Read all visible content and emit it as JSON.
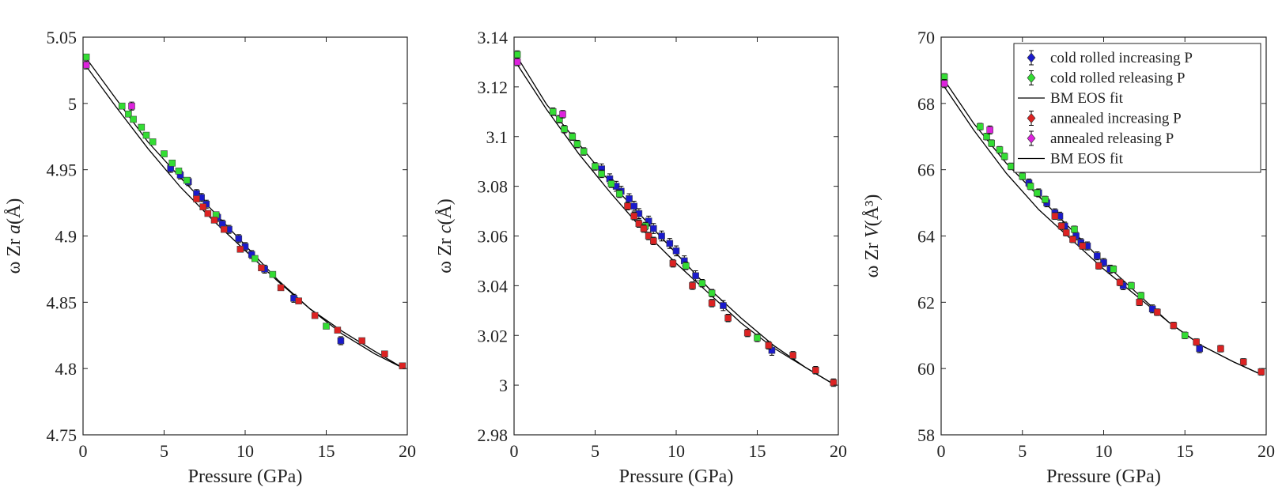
{
  "figure": {
    "legend": {
      "placement": "top-right of third panel",
      "entries": [
        {
          "label": "cold rolled increasing P",
          "color": "#1a1acc",
          "kind": "marker"
        },
        {
          "label": "cold rolled releasing P",
          "color": "#33dd33",
          "kind": "marker"
        },
        {
          "label": "BM EOS fit",
          "color": "#000000",
          "kind": "line"
        },
        {
          "label": "annealed increasing P",
          "color": "#dd2222",
          "kind": "marker"
        },
        {
          "label": "annealed releasing P",
          "color": "#dd22dd",
          "kind": "marker"
        },
        {
          "label": "BM EOS fit",
          "color": "#000000",
          "kind": "line"
        }
      ]
    }
  },
  "chart_data": [
    {
      "type": "scatter",
      "id": "a",
      "title": "",
      "xlabel": "Pressure (GPa)",
      "ylabel_prefix": "ω Zr ",
      "ylabel_var": "a",
      "ylabel_unit": "(Å)",
      "xlim": [
        0,
        20
      ],
      "ylim": [
        4.75,
        5.05
      ],
      "xticks": [
        0,
        5,
        10,
        15,
        20
      ],
      "xtick_labels": [
        "0",
        "5",
        "10",
        "15",
        "20"
      ],
      "yticks": [
        4.75,
        4.8,
        4.85,
        4.9,
        4.95,
        5.0,
        5.05
      ],
      "ytick_labels": [
        "4.75",
        "4.8",
        "4.85",
        "4.9",
        "4.95",
        "5",
        "5.05"
      ],
      "grid": false,
      "series": [
        {
          "name": "cold rolled increasing P",
          "color": "#1a1acc",
          "err": 0.003,
          "points": [
            [
              5.4,
              4.951
            ],
            [
              6.0,
              4.946
            ],
            [
              6.5,
              4.941
            ],
            [
              7.0,
              4.932
            ],
            [
              7.3,
              4.929
            ],
            [
              7.6,
              4.924
            ],
            [
              8.3,
              4.914
            ],
            [
              8.6,
              4.909
            ],
            [
              9.0,
              4.905
            ],
            [
              9.6,
              4.898
            ],
            [
              10.0,
              4.892
            ],
            [
              10.4,
              4.886
            ],
            [
              11.2,
              4.875
            ],
            [
              13.0,
              4.853
            ],
            [
              15.9,
              4.821
            ]
          ]
        },
        {
          "name": "cold rolled releasing P",
          "color": "#33dd33",
          "err": 0.002,
          "points": [
            [
              0.2,
              5.035
            ],
            [
              2.4,
              4.998
            ],
            [
              2.8,
              4.992
            ],
            [
              3.1,
              4.988
            ],
            [
              3.6,
              4.982
            ],
            [
              3.9,
              4.976
            ],
            [
              4.3,
              4.971
            ],
            [
              5.0,
              4.962
            ],
            [
              5.5,
              4.955
            ],
            [
              5.9,
              4.949
            ],
            [
              6.4,
              4.942
            ],
            [
              8.2,
              4.916
            ],
            [
              10.6,
              4.883
            ],
            [
              11.7,
              4.871
            ],
            [
              15.0,
              4.832
            ]
          ]
        },
        {
          "name": "annealed increasing P",
          "color": "#dd2222",
          "err": 0.002,
          "points": [
            [
              7.0,
              4.928
            ],
            [
              7.4,
              4.922
            ],
            [
              7.7,
              4.917
            ],
            [
              8.1,
              4.912
            ],
            [
              8.7,
              4.905
            ],
            [
              9.7,
              4.89
            ],
            [
              11.0,
              4.876
            ],
            [
              12.2,
              4.861
            ],
            [
              13.3,
              4.851
            ],
            [
              14.3,
              4.84
            ],
            [
              15.7,
              4.829
            ],
            [
              17.2,
              4.821
            ],
            [
              18.6,
              4.811
            ],
            [
              19.7,
              4.802
            ]
          ]
        },
        {
          "name": "annealed releasing P",
          "color": "#dd22dd",
          "err": 0.003,
          "points": [
            [
              0.2,
              5.029
            ],
            [
              3.0,
              4.998
            ]
          ]
        }
      ],
      "fits": [
        {
          "name": "BM EOS fit (cold rolled)",
          "points": [
            [
              0.2,
              5.034
            ],
            [
              2,
              5.004
            ],
            [
              4,
              4.971
            ],
            [
              6,
              4.944
            ],
            [
              8,
              4.919
            ],
            [
              10,
              4.893
            ],
            [
              12,
              4.867
            ],
            [
              14,
              4.845
            ],
            [
              16,
              4.826
            ],
            [
              18,
              4.811
            ],
            [
              19.8,
              4.8
            ]
          ]
        },
        {
          "name": "BM EOS fit (annealed)",
          "points": [
            [
              0.2,
              5.028
            ],
            [
              2,
              4.998
            ],
            [
              4,
              4.966
            ],
            [
              6,
              4.937
            ],
            [
              8,
              4.912
            ],
            [
              10,
              4.889
            ],
            [
              12,
              4.866
            ],
            [
              14,
              4.845
            ],
            [
              16,
              4.828
            ],
            [
              18,
              4.813
            ],
            [
              19.8,
              4.8
            ]
          ]
        }
      ]
    },
    {
      "type": "scatter",
      "id": "c",
      "title": "",
      "xlabel": "Pressure (GPa)",
      "ylabel_prefix": "ω Zr ",
      "ylabel_var": "c",
      "ylabel_unit": "(Å)",
      "xlim": [
        0,
        20
      ],
      "ylim": [
        2.98,
        3.14
      ],
      "xticks": [
        0,
        5,
        10,
        15,
        20
      ],
      "xtick_labels": [
        "0",
        "5",
        "10",
        "15",
        "20"
      ],
      "yticks": [
        2.98,
        3.0,
        3.02,
        3.04,
        3.06,
        3.08,
        3.1,
        3.12,
        3.14
      ],
      "ytick_labels": [
        "2.98",
        "3",
        "3.02",
        "3.04",
        "3.06",
        "3.08",
        "3.1",
        "3.12",
        "3.14"
      ],
      "grid": false,
      "series": [
        {
          "name": "cold rolled increasing P",
          "color": "#1a1acc",
          "err": 0.002,
          "points": [
            [
              5.4,
              3.087
            ],
            [
              5.9,
              3.083
            ],
            [
              6.3,
              3.08
            ],
            [
              6.6,
              3.078
            ],
            [
              7.1,
              3.075
            ],
            [
              7.4,
              3.072
            ],
            [
              7.7,
              3.069
            ],
            [
              8.3,
              3.066
            ],
            [
              8.6,
              3.063
            ],
            [
              9.1,
              3.06
            ],
            [
              9.6,
              3.057
            ],
            [
              10.0,
              3.054
            ],
            [
              10.5,
              3.05
            ],
            [
              11.2,
              3.044
            ],
            [
              12.9,
              3.032
            ],
            [
              15.9,
              3.014
            ]
          ]
        },
        {
          "name": "cold rolled releasing P",
          "color": "#33dd33",
          "err": 0.0015,
          "points": [
            [
              0.2,
              3.133
            ],
            [
              2.4,
              3.11
            ],
            [
              2.8,
              3.107
            ],
            [
              3.1,
              3.103
            ],
            [
              3.6,
              3.1
            ],
            [
              3.9,
              3.097
            ],
            [
              4.3,
              3.094
            ],
            [
              5.0,
              3.088
            ],
            [
              5.4,
              3.085
            ],
            [
              6.0,
              3.081
            ],
            [
              6.5,
              3.077
            ],
            [
              8.1,
              3.064
            ],
            [
              10.6,
              3.048
            ],
            [
              11.6,
              3.041
            ],
            [
              12.2,
              3.037
            ],
            [
              15.0,
              3.019
            ]
          ]
        },
        {
          "name": "annealed increasing P",
          "color": "#dd2222",
          "err": 0.0015,
          "points": [
            [
              7.0,
              3.072
            ],
            [
              7.4,
              3.068
            ],
            [
              7.7,
              3.065
            ],
            [
              8.0,
              3.063
            ],
            [
              8.3,
              3.06
            ],
            [
              8.6,
              3.058
            ],
            [
              9.8,
              3.049
            ],
            [
              11.0,
              3.04
            ],
            [
              12.2,
              3.033
            ],
            [
              13.2,
              3.027
            ],
            [
              14.4,
              3.021
            ],
            [
              15.7,
              3.016
            ],
            [
              17.2,
              3.012
            ],
            [
              18.6,
              3.006
            ],
            [
              19.7,
              3.001
            ]
          ]
        },
        {
          "name": "annealed releasing P",
          "color": "#dd22dd",
          "err": 0.0015,
          "points": [
            [
              0.2,
              3.13
            ],
            [
              3.0,
              3.109
            ]
          ]
        }
      ],
      "fits": [
        {
          "name": "BM EOS fit (cold rolled)",
          "points": [
            [
              0.2,
              3.132
            ],
            [
              2,
              3.113
            ],
            [
              4,
              3.097
            ],
            [
              6,
              3.081
            ],
            [
              8,
              3.067
            ],
            [
              10,
              3.053
            ],
            [
              12,
              3.039
            ],
            [
              14,
              3.027
            ],
            [
              16,
              3.016
            ],
            [
              18,
              3.007
            ],
            [
              19.8,
              3.0
            ]
          ]
        },
        {
          "name": "BM EOS fit (annealed)",
          "points": [
            [
              0.2,
              3.129
            ],
            [
              2,
              3.111
            ],
            [
              4,
              3.093
            ],
            [
              6,
              3.077
            ],
            [
              8,
              3.062
            ],
            [
              10,
              3.049
            ],
            [
              12,
              3.037
            ],
            [
              14,
              3.025
            ],
            [
              16,
              3.015
            ],
            [
              18,
              3.007
            ],
            [
              19.8,
              3.0
            ]
          ]
        }
      ]
    },
    {
      "type": "scatter",
      "id": "V",
      "title": "",
      "xlabel": "Pressure (GPa)",
      "ylabel_prefix": "ω Zr ",
      "ylabel_var": "V",
      "ylabel_unit": "(Å³)",
      "xlim": [
        0,
        20
      ],
      "ylim": [
        58,
        70
      ],
      "xticks": [
        0,
        5,
        10,
        15,
        20
      ],
      "xtick_labels": [
        "0",
        "5",
        "10",
        "15",
        "20"
      ],
      "yticks": [
        58,
        60,
        62,
        64,
        66,
        68,
        70
      ],
      "ytick_labels": [
        "58",
        "60",
        "62",
        "64",
        "66",
        "68",
        "70"
      ],
      "grid": false,
      "series": [
        {
          "name": "cold rolled increasing P",
          "color": "#1a1acc",
          "err": 0.12,
          "points": [
            [
              5.4,
              65.6
            ],
            [
              6.0,
              65.3
            ],
            [
              6.5,
              65.0
            ],
            [
              7.0,
              64.7
            ],
            [
              7.3,
              64.6
            ],
            [
              7.6,
              64.3
            ],
            [
              8.3,
              64.0
            ],
            [
              8.6,
              63.8
            ],
            [
              9.0,
              63.7
            ],
            [
              9.6,
              63.4
            ],
            [
              10.0,
              63.2
            ],
            [
              10.4,
              63.0
            ],
            [
              11.2,
              62.5
            ],
            [
              13.0,
              61.8
            ],
            [
              15.9,
              60.6
            ]
          ]
        },
        {
          "name": "cold rolled releasing P",
          "color": "#33dd33",
          "err": 0.1,
          "points": [
            [
              0.2,
              68.8
            ],
            [
              2.4,
              67.3
            ],
            [
              2.8,
              67.0
            ],
            [
              3.1,
              66.8
            ],
            [
              3.6,
              66.6
            ],
            [
              3.9,
              66.4
            ],
            [
              4.3,
              66.1
            ],
            [
              5.0,
              65.8
            ],
            [
              5.5,
              65.5
            ],
            [
              5.9,
              65.3
            ],
            [
              6.4,
              65.1
            ],
            [
              8.2,
              64.2
            ],
            [
              10.6,
              63.0
            ],
            [
              11.7,
              62.5
            ],
            [
              12.3,
              62.2
            ],
            [
              15.0,
              61.0
            ]
          ]
        },
        {
          "name": "annealed increasing P",
          "color": "#dd2222",
          "err": 0.1,
          "points": [
            [
              7.0,
              64.6
            ],
            [
              7.4,
              64.3
            ],
            [
              7.7,
              64.1
            ],
            [
              8.1,
              63.9
            ],
            [
              8.7,
              63.7
            ],
            [
              9.7,
              63.1
            ],
            [
              11.0,
              62.6
            ],
            [
              12.2,
              62.0
            ],
            [
              13.3,
              61.7
            ],
            [
              14.3,
              61.3
            ],
            [
              15.7,
              60.8
            ],
            [
              17.2,
              60.6
            ],
            [
              18.6,
              60.2
            ],
            [
              19.7,
              59.9
            ]
          ]
        },
        {
          "name": "annealed releasing P",
          "color": "#dd22dd",
          "err": 0.12,
          "points": [
            [
              0.2,
              68.6
            ],
            [
              3.0,
              67.2
            ]
          ]
        }
      ],
      "fits": [
        {
          "name": "BM EOS fit (cold rolled)",
          "points": [
            [
              0.2,
              68.7
            ],
            [
              2,
              67.4
            ],
            [
              4,
              66.2
            ],
            [
              6,
              65.2
            ],
            [
              8,
              64.2
            ],
            [
              10,
              63.2
            ],
            [
              12,
              62.3
            ],
            [
              14,
              61.4
            ],
            [
              16,
              60.7
            ],
            [
              18,
              60.2
            ],
            [
              19.8,
              59.8
            ]
          ]
        },
        {
          "name": "BM EOS fit (annealed)",
          "points": [
            [
              0.2,
              68.5
            ],
            [
              2,
              67.2
            ],
            [
              4,
              65.9
            ],
            [
              6,
              64.8
            ],
            [
              8,
              63.9
            ],
            [
              10,
              63.0
            ],
            [
              12,
              62.2
            ],
            [
              14,
              61.4
            ],
            [
              16,
              60.7
            ],
            [
              18,
              60.2
            ],
            [
              19.8,
              59.8
            ]
          ]
        }
      ]
    }
  ]
}
